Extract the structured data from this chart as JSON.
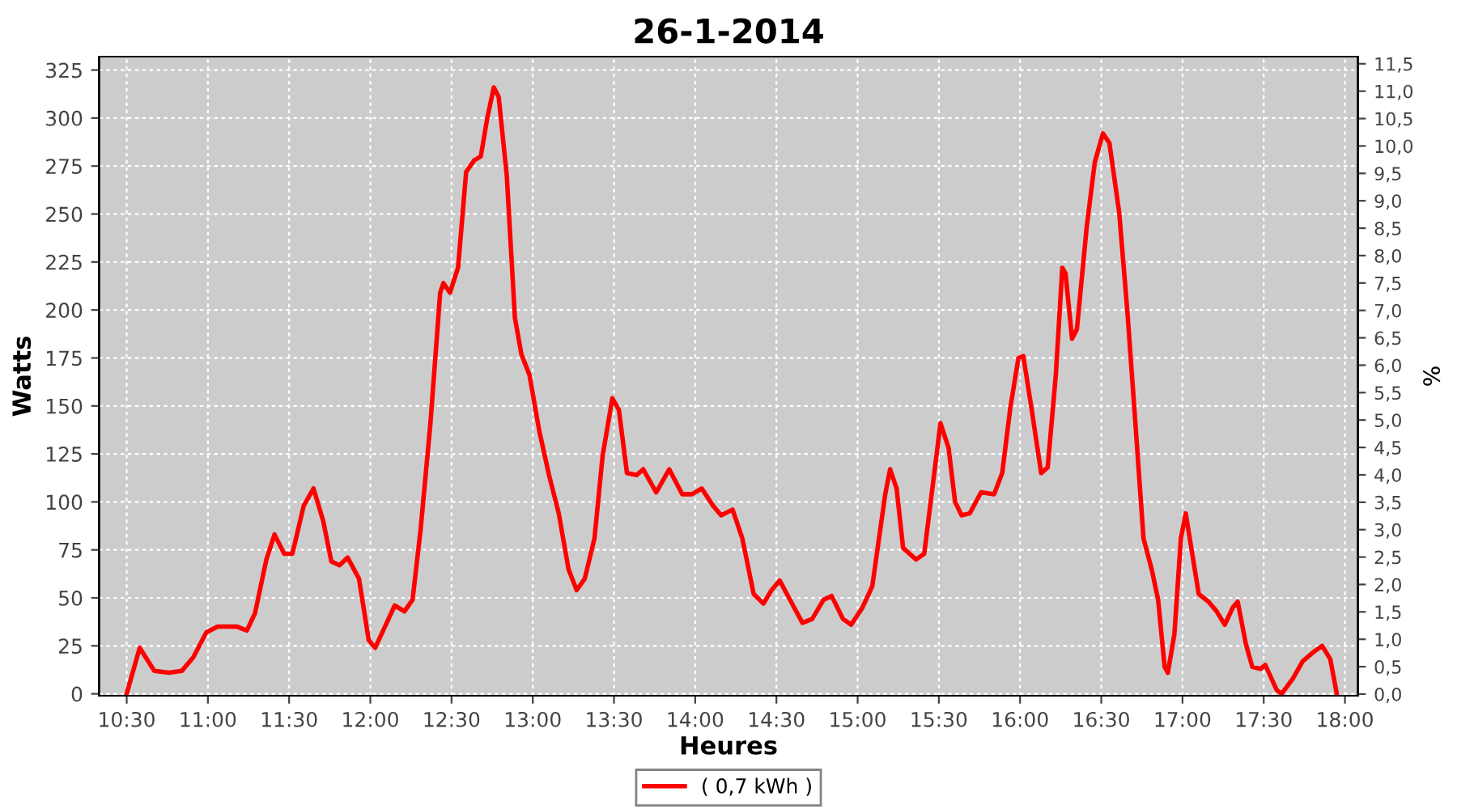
{
  "chart_data": {
    "type": "line",
    "title": "26-1-2014",
    "xlabel": "Heures",
    "ylabel": "Watts",
    "y2label": "%",
    "xlim": [
      10.33,
      18.08
    ],
    "xticks": [
      {
        "value": 10.5,
        "label": "10:30"
      },
      {
        "value": 11,
        "label": "11:00"
      },
      {
        "value": 11.5,
        "label": "11:30"
      },
      {
        "value": 12,
        "label": "12:00"
      },
      {
        "value": 12.5,
        "label": "12:30"
      },
      {
        "value": 13,
        "label": "13:00"
      },
      {
        "value": 13.5,
        "label": "13:30"
      },
      {
        "value": 14,
        "label": "14:00"
      },
      {
        "value": 14.5,
        "label": "14:30"
      },
      {
        "value": 15,
        "label": "15:00"
      },
      {
        "value": 15.5,
        "label": "15:30"
      },
      {
        "value": 16,
        "label": "16:00"
      },
      {
        "value": 16.5,
        "label": "16:30"
      },
      {
        "value": 17,
        "label": "17:00"
      },
      {
        "value": 17.5,
        "label": "17:30"
      },
      {
        "value": 18,
        "label": "18:00"
      }
    ],
    "ylim": [
      -1,
      332
    ],
    "yticks": [
      0,
      25,
      50,
      75,
      100,
      125,
      150,
      175,
      200,
      225,
      250,
      275,
      300,
      325
    ],
    "y2lim": [
      -0.03,
      11.63
    ],
    "y2ticks": [
      {
        "value": 0,
        "label": "0,0"
      },
      {
        "value": 0.5,
        "label": "0,5"
      },
      {
        "value": 1,
        "label": "1,0"
      },
      {
        "value": 1.5,
        "label": "1,5"
      },
      {
        "value": 2,
        "label": "2,0"
      },
      {
        "value": 2.5,
        "label": "2,5"
      },
      {
        "value": 3,
        "label": "3,0"
      },
      {
        "value": 3.5,
        "label": "3,5"
      },
      {
        "value": 4,
        "label": "4,0"
      },
      {
        "value": 4.5,
        "label": "4,5"
      },
      {
        "value": 5,
        "label": "5,0"
      },
      {
        "value": 5.5,
        "label": "5,5"
      },
      {
        "value": 6,
        "label": "6,0"
      },
      {
        "value": 6.5,
        "label": "6,5"
      },
      {
        "value": 7,
        "label": "7,0"
      },
      {
        "value": 7.5,
        "label": "7,5"
      },
      {
        "value": 8,
        "label": "8,0"
      },
      {
        "value": 8.5,
        "label": "8,5"
      },
      {
        "value": 9,
        "label": "9,0"
      },
      {
        "value": 9.5,
        "label": "9,5"
      },
      {
        "value": 10,
        "label": "10,0"
      },
      {
        "value": 10.5,
        "label": "10,5"
      },
      {
        "value": 11,
        "label": "11,0"
      },
      {
        "value": 11.5,
        "label": "11,5"
      }
    ],
    "grid": true,
    "legend": "bottom",
    "marker": "none",
    "line_style": "solid",
    "series": [
      {
        "name": "( 0,7 kWh )",
        "color": "#ff0000",
        "x": [
          10.5,
          10.58,
          10.67,
          10.76,
          10.84,
          10.91,
          10.99,
          11.06,
          11.18,
          11.24,
          11.29,
          11.36,
          11.41,
          11.47,
          11.52,
          11.59,
          11.65,
          11.71,
          11.76,
          11.81,
          11.86,
          11.93,
          11.99,
          12.03,
          12.09,
          12.15,
          12.21,
          12.26,
          12.31,
          12.37,
          12.43,
          12.45,
          12.49,
          12.54,
          12.59,
          12.64,
          12.68,
          12.72,
          12.76,
          12.79,
          12.84,
          12.89,
          12.93,
          12.98,
          13.04,
          13.1,
          13.16,
          13.22,
          13.27,
          13.32,
          13.38,
          13.43,
          13.49,
          13.53,
          13.58,
          13.64,
          13.68,
          13.76,
          13.84,
          13.92,
          13.98,
          14.04,
          14.11,
          14.16,
          14.23,
          14.29,
          14.36,
          14.42,
          14.47,
          14.52,
          14.59,
          14.66,
          14.72,
          14.79,
          14.84,
          14.91,
          14.96,
          15.03,
          15.09,
          15.17,
          15.2,
          15.24,
          15.28,
          15.36,
          15.41,
          15.46,
          15.51,
          15.56,
          15.6,
          15.64,
          15.69,
          15.76,
          15.84,
          15.89,
          15.94,
          15.99,
          16.02,
          16.07,
          16.13,
          16.17,
          16.22,
          16.26,
          16.28,
          16.32,
          16.35,
          16.41,
          16.46,
          16.51,
          16.55,
          16.61,
          16.66,
          16.71,
          16.76,
          16.81,
          16.85,
          16.89,
          16.91,
          16.95,
          16.99,
          17.02,
          17.06,
          17.1,
          17.16,
          17.21,
          17.26,
          17.31,
          17.34,
          17.39,
          17.43,
          17.48,
          17.51,
          17.58,
          17.61,
          17.68,
          17.74,
          17.81,
          17.86,
          17.91,
          17.95
        ],
        "values": [
          0,
          24,
          12,
          11,
          12,
          19,
          32,
          35,
          35,
          33,
          42,
          70,
          83,
          73,
          73,
          98,
          107,
          90,
          69,
          67,
          71,
          60,
          28,
          24,
          35,
          46,
          43,
          49,
          86,
          141,
          209,
          214,
          209,
          222,
          272,
          278,
          280,
          300,
          316,
          311,
          270,
          196,
          177,
          166,
          137,
          114,
          94,
          65,
          54,
          60,
          81,
          124,
          154,
          148,
          115,
          114,
          117,
          105,
          117,
          104,
          104,
          107,
          98,
          93,
          96,
          81,
          52,
          47,
          54,
          59,
          48,
          37,
          39,
          49,
          51,
          39,
          36,
          45,
          56,
          104,
          117,
          107,
          76,
          70,
          73,
          107,
          141,
          128,
          100,
          93,
          94,
          105,
          104,
          115,
          149,
          175,
          176,
          149,
          115,
          118,
          166,
          222,
          219,
          185,
          190,
          243,
          277,
          292,
          287,
          251,
          200,
          141,
          81,
          65,
          49,
          14,
          11,
          31,
          81,
          94,
          73,
          52,
          48,
          43,
          36,
          45,
          48,
          26,
          14,
          13,
          15,
          2,
          0,
          8,
          17,
          22,
          25,
          18,
          0
        ]
      }
    ]
  }
}
